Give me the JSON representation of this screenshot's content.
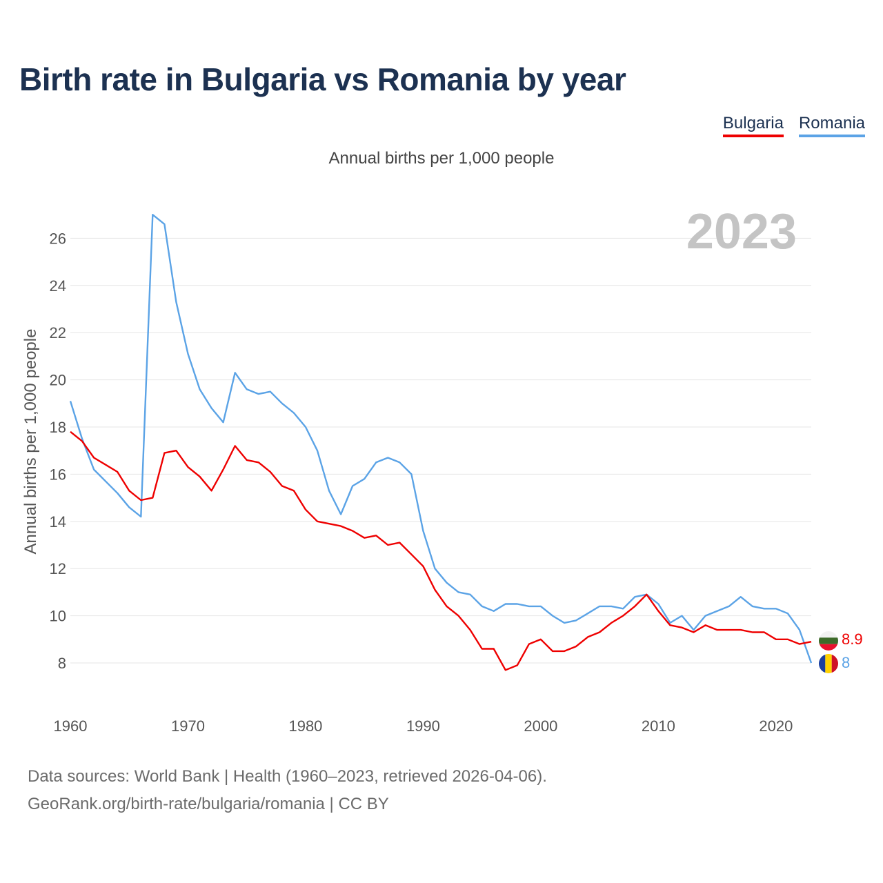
{
  "title": "Birth rate in Bulgaria vs Romania by year",
  "subtitle": "Annual births per 1,000 people",
  "legend": [
    {
      "name": "Bulgaria",
      "color": "#ee0000"
    },
    {
      "name": "Romania",
      "color": "#5ba3e6"
    }
  ],
  "watermark_year": "2023",
  "source_line1": "Data sources: World Bank | Health (1960–2023, retrieved 2026-04-06).",
  "source_line2": "GeoRank.org/birth-rate/bulgaria/romania | CC BY",
  "chart_data": {
    "type": "line",
    "title": "Birth rate in Bulgaria vs Romania by year",
    "ylabel": "Annual births per 1,000 people",
    "xlabel": "",
    "xlim": [
      1960,
      2023
    ],
    "ylim": [
      6.7,
      27
    ],
    "xticks": [
      1960,
      1970,
      1980,
      1990,
      2000,
      2010,
      2020
    ],
    "yticks": [
      8,
      10,
      12,
      14,
      16,
      18,
      20,
      22,
      24,
      26
    ],
    "grid": true,
    "x": [
      1960,
      1961,
      1962,
      1963,
      1964,
      1965,
      1966,
      1967,
      1968,
      1969,
      1970,
      1971,
      1972,
      1973,
      1974,
      1975,
      1976,
      1977,
      1978,
      1979,
      1980,
      1981,
      1982,
      1983,
      1984,
      1985,
      1986,
      1987,
      1988,
      1989,
      1990,
      1991,
      1992,
      1993,
      1994,
      1995,
      1996,
      1997,
      1998,
      1999,
      2000,
      2001,
      2002,
      2003,
      2004,
      2005,
      2006,
      2007,
      2008,
      2009,
      2010,
      2011,
      2012,
      2013,
      2014,
      2015,
      2016,
      2017,
      2018,
      2019,
      2020,
      2021,
      2022,
      2023
    ],
    "series": [
      {
        "name": "Bulgaria",
        "color": "#ee0000",
        "end_label": "8.9",
        "values": [
          17.8,
          17.4,
          16.7,
          16.4,
          16.1,
          15.3,
          14.9,
          15.0,
          16.9,
          17.0,
          16.3,
          15.9,
          15.3,
          16.2,
          17.2,
          16.6,
          16.5,
          16.1,
          15.5,
          15.3,
          14.5,
          14.0,
          13.9,
          13.8,
          13.6,
          13.3,
          13.4,
          13.0,
          13.1,
          12.6,
          12.1,
          11.1,
          10.4,
          10.0,
          9.4,
          8.6,
          8.6,
          7.7,
          7.9,
          8.8,
          9.0,
          8.5,
          8.5,
          8.7,
          9.1,
          9.3,
          9.7,
          10.0,
          10.4,
          10.9,
          10.2,
          9.6,
          9.5,
          9.3,
          9.6,
          9.4,
          9.4,
          9.4,
          9.3,
          9.3,
          9.0,
          9.0,
          8.8,
          8.9
        ]
      },
      {
        "name": "Romania",
        "color": "#5ba3e6",
        "end_label": "8",
        "values": [
          19.1,
          17.5,
          16.2,
          15.7,
          15.2,
          14.6,
          14.2,
          27.0,
          26.6,
          23.3,
          21.1,
          19.6,
          18.8,
          18.2,
          20.3,
          19.6,
          19.4,
          19.5,
          19.0,
          18.6,
          18.0,
          17.0,
          15.3,
          14.3,
          15.5,
          15.8,
          16.5,
          16.7,
          16.5,
          16.0,
          13.6,
          12.0,
          11.4,
          11.0,
          10.9,
          10.4,
          10.2,
          10.5,
          10.5,
          10.4,
          10.4,
          10.0,
          9.7,
          9.8,
          10.1,
          10.4,
          10.4,
          10.3,
          10.8,
          10.9,
          10.5,
          9.7,
          10.0,
          9.4,
          10.0,
          10.2,
          10.4,
          10.8,
          10.4,
          10.3,
          10.3,
          10.1,
          9.4,
          8.0
        ]
      }
    ]
  }
}
